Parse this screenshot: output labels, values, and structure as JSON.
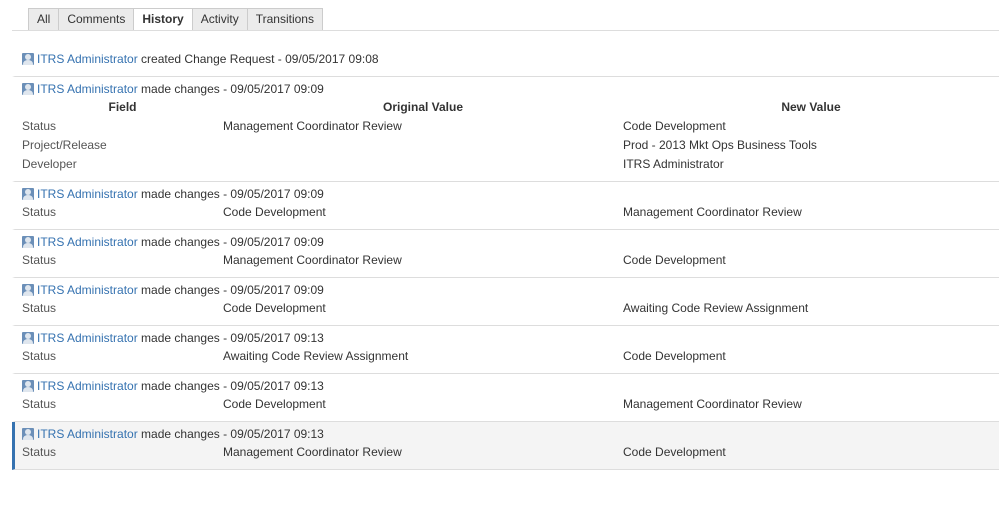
{
  "tabs": [
    {
      "label": "All"
    },
    {
      "label": "Comments"
    },
    {
      "label": "History",
      "active": true
    },
    {
      "label": "Activity"
    },
    {
      "label": "Transitions"
    }
  ],
  "columns": {
    "field": "Field",
    "original": "Original Value",
    "new": "New Value"
  },
  "entries": [
    {
      "user": "ITRS Administrator",
      "action": "created Change Request - 09/05/2017 09:08",
      "rows": []
    },
    {
      "user": "ITRS Administrator",
      "action": "made changes - 09/05/2017 09:09",
      "show_headers": true,
      "rows": [
        {
          "field": "Status",
          "original": "Management Coordinator Review",
          "new": "Code Development"
        },
        {
          "field": "Project/Release",
          "original": "",
          "new": "Prod - 2013 Mkt Ops Business Tools"
        },
        {
          "field": "Developer",
          "original": "",
          "new": "ITRS Administrator"
        }
      ]
    },
    {
      "user": "ITRS Administrator",
      "action": "made changes - 09/05/2017 09:09",
      "rows": [
        {
          "field": "Status",
          "original": "Code Development",
          "new": "Management Coordinator Review"
        }
      ]
    },
    {
      "user": "ITRS Administrator",
      "action": "made changes - 09/05/2017 09:09",
      "rows": [
        {
          "field": "Status",
          "original": "Management Coordinator Review",
          "new": "Code Development"
        }
      ]
    },
    {
      "user": "ITRS Administrator",
      "action": "made changes - 09/05/2017 09:09",
      "rows": [
        {
          "field": "Status",
          "original": "Code Development",
          "new": "Awaiting Code Review Assignment"
        }
      ]
    },
    {
      "user": "ITRS Administrator",
      "action": "made changes - 09/05/2017 09:13",
      "rows": [
        {
          "field": "Status",
          "original": "Awaiting Code Review Assignment",
          "new": "Code Development"
        }
      ]
    },
    {
      "user": "ITRS Administrator",
      "action": "made changes - 09/05/2017 09:13",
      "rows": [
        {
          "field": "Status",
          "original": "Code Development",
          "new": "Management Coordinator Review"
        }
      ]
    },
    {
      "user": "ITRS Administrator",
      "action": "made changes - 09/05/2017 09:13",
      "selected": true,
      "rows": [
        {
          "field": "Status",
          "original": "Management Coordinator Review",
          "new": "Code Development"
        }
      ]
    }
  ],
  "colors": {
    "link": "#3572b0",
    "selected_border": "#3572b0"
  }
}
